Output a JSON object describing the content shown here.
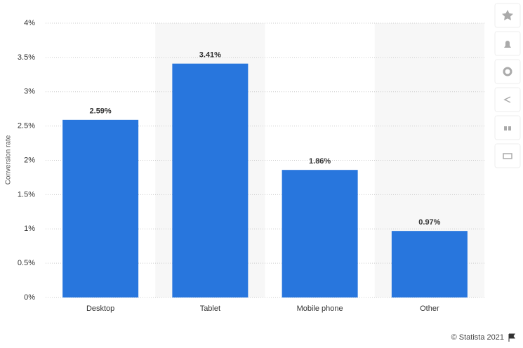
{
  "chart_data": {
    "type": "bar",
    "y_axis_label": "Conversion rate",
    "categories": [
      "Desktop",
      "Tablet",
      "Mobile phone",
      "Other"
    ],
    "values": [
      2.59,
      3.41,
      1.86,
      0.97
    ],
    "value_labels": [
      "2.59%",
      "3.41%",
      "1.86%",
      "0.97%"
    ],
    "color": "#2876dd",
    "ylim": [
      0,
      4
    ],
    "yticks": [
      {
        "value": 0,
        "label": "0%"
      },
      {
        "value": 0.5,
        "label": "0.5%"
      },
      {
        "value": 1,
        "label": "1%"
      },
      {
        "value": 1.5,
        "label": "1.5%"
      },
      {
        "value": 2,
        "label": "2%"
      },
      {
        "value": 2.5,
        "label": "2.5%"
      },
      {
        "value": 3,
        "label": "3%"
      },
      {
        "value": 3.5,
        "label": "3.5%"
      },
      {
        "value": 4,
        "label": "4%"
      }
    ],
    "grid": true,
    "credit": "© Statista 2021"
  }
}
